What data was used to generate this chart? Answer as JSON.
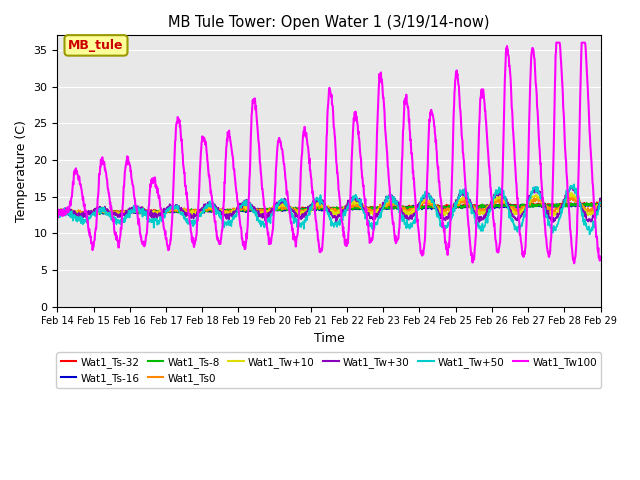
{
  "title": "MB Tule Tower: Open Water 1 (3/19/14-now)",
  "xlabel": "Time",
  "ylabel": "Temperature (C)",
  "ylim": [
    0,
    37
  ],
  "yticks": [
    0,
    5,
    10,
    15,
    20,
    25,
    30,
    35
  ],
  "x_start": 0,
  "x_end": 15,
  "num_points": 1500,
  "background_color": "#ffffff",
  "plot_bg_color": "#e8e8e8",
  "annotation_text": "MB_tule",
  "annotation_color": "#cc0000",
  "annotation_bg": "#ffff99",
  "series": [
    {
      "name": "Wat1_Ts-32",
      "color": "#ff0000",
      "lw": 1.2
    },
    {
      "name": "Wat1_Ts-16",
      "color": "#0000cc",
      "lw": 1.2
    },
    {
      "name": "Wat1_Ts-8",
      "color": "#00bb00",
      "lw": 1.2
    },
    {
      "name": "Wat1_Ts0",
      "color": "#ff8800",
      "lw": 1.2
    },
    {
      "name": "Wat1_Tw+10",
      "color": "#dddd00",
      "lw": 1.2
    },
    {
      "name": "Wat1_Tw+30",
      "color": "#8800bb",
      "lw": 1.2
    },
    {
      "name": "Wat1_Tw+50",
      "color": "#00cccc",
      "lw": 1.2
    },
    {
      "name": "Wat1_Tw100",
      "color": "#ff00ff",
      "lw": 1.5
    }
  ],
  "xtick_labels": [
    "Feb 14",
    "Feb 15",
    "Feb 16",
    "Feb 17",
    "Feb 18",
    "Feb 19",
    "Feb 20",
    "Feb 21",
    "Feb 22",
    "Feb 23",
    "Feb 24",
    "Feb 25",
    "Feb 26",
    "Feb 27",
    "Feb 28",
    "Feb 29"
  ],
  "xtick_positions": [
    0,
    1,
    2,
    3,
    4,
    5,
    6,
    7,
    8,
    9,
    10,
    11,
    12,
    13,
    14,
    15
  ]
}
